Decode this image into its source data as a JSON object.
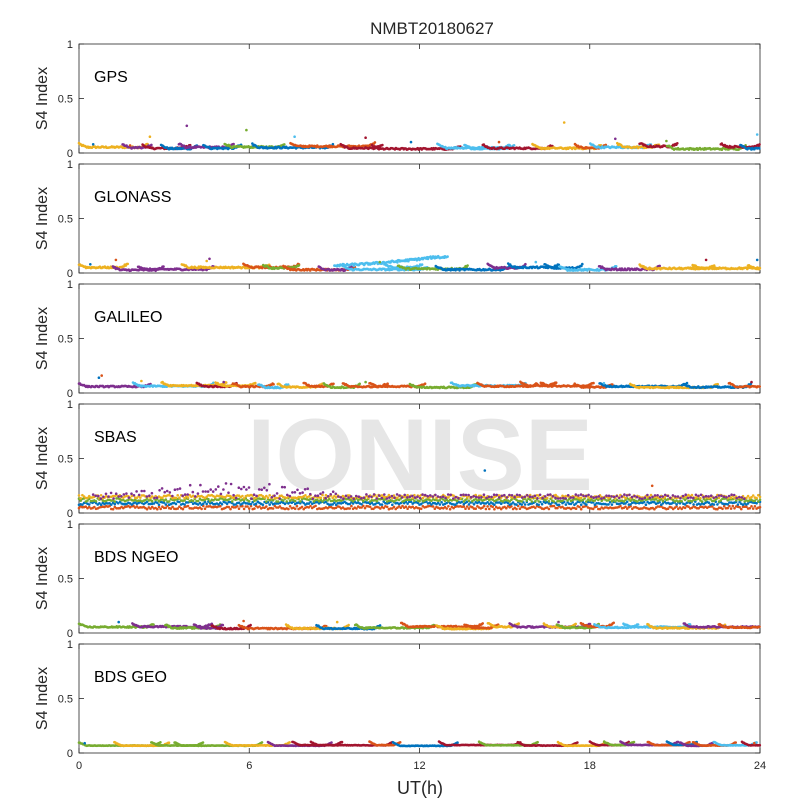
{
  "figure": {
    "title": "NMBT20180627",
    "watermark": "IONISE",
    "xlabel": "UT(h)",
    "ylabel": "S4 Index"
  },
  "style": {
    "series_colors": [
      "#0072BD",
      "#D95319",
      "#EDB120",
      "#7E2F8E",
      "#77AC30",
      "#4DBEEE",
      "#A2142F"
    ],
    "axis_color": "#262626",
    "watermark_color": "#E6E6E6"
  },
  "chart_data": [
    {
      "type": "scatter",
      "panel": "GPS",
      "xlim": [
        0,
        24
      ],
      "ylim": [
        0,
        1
      ],
      "xticks": [
        0,
        6,
        12,
        18,
        24
      ],
      "yticks": [
        0,
        0.5,
        1
      ],
      "baseline": 0.05,
      "spread": 0.025,
      "outliers": [
        [
          0.5,
          0.08
        ],
        [
          1.8,
          0.07
        ],
        [
          2.5,
          0.15
        ],
        [
          3.8,
          0.25
        ],
        [
          5.9,
          0.21
        ],
        [
          7.6,
          0.15
        ],
        [
          10.1,
          0.14
        ],
        [
          11.7,
          0.1
        ],
        [
          14.8,
          0.1
        ],
        [
          17.1,
          0.28
        ],
        [
          18.9,
          0.13
        ],
        [
          20.7,
          0.11
        ],
        [
          23.9,
          0.17
        ]
      ]
    },
    {
      "type": "scatter",
      "panel": "GLONASS",
      "xlim": [
        0,
        24
      ],
      "ylim": [
        0,
        1
      ],
      "xticks": [
        0,
        6,
        12,
        18,
        24
      ],
      "yticks": [
        0,
        0.5,
        1
      ],
      "baseline": 0.04,
      "spread": 0.025,
      "bump": {
        "x_start": 9,
        "x_end": 13,
        "y_max": 0.16
      },
      "outliers": [
        [
          0.4,
          0.08
        ],
        [
          1.3,
          0.12
        ],
        [
          4.5,
          0.11
        ],
        [
          4.6,
          0.13
        ],
        [
          10.6,
          0.1
        ],
        [
          16.1,
          0.1
        ],
        [
          22.1,
          0.12
        ],
        [
          23.9,
          0.12
        ]
      ]
    },
    {
      "type": "scatter",
      "panel": "GALILEO",
      "xlim": [
        0,
        24
      ],
      "ylim": [
        0,
        1
      ],
      "xticks": [
        0,
        6,
        12,
        18,
        24
      ],
      "yticks": [
        0,
        0.5,
        1
      ],
      "baseline": 0.06,
      "spread": 0.02,
      "outliers": [
        [
          0.7,
          0.14
        ],
        [
          0.8,
          0.16
        ],
        [
          2.2,
          0.11
        ],
        [
          5.1,
          0.1
        ],
        [
          10.1,
          0.1
        ],
        [
          18.5,
          0.09
        ],
        [
          23.7,
          0.1
        ]
      ]
    },
    {
      "type": "scatter",
      "panel": "SBAS",
      "xlim": [
        0,
        24
      ],
      "ylim": [
        0,
        1
      ],
      "xticks": [
        0,
        6,
        12,
        18,
        24
      ],
      "yticks": [
        0,
        0.5,
        1
      ],
      "levels": [
        0.05,
        0.09,
        0.12,
        0.15
      ],
      "scatter_peak": {
        "x_center": 5.5,
        "y_max": 0.28
      },
      "outliers": [
        [
          14.3,
          0.39
        ],
        [
          20.2,
          0.25
        ]
      ]
    },
    {
      "type": "scatter",
      "panel": "BDS NGEO",
      "xlim": [
        0,
        24
      ],
      "ylim": [
        0,
        1
      ],
      "xticks": [
        0,
        6,
        12,
        18,
        24
      ],
      "yticks": [
        0,
        0.5,
        1
      ],
      "baseline": 0.05,
      "spread": 0.02,
      "outliers": [
        [
          1.4,
          0.1
        ],
        [
          5.8,
          0.11
        ],
        [
          9.1,
          0.1
        ],
        [
          16.9,
          0.1
        ]
      ]
    },
    {
      "type": "scatter",
      "panel": "BDS GEO",
      "xlim": [
        0,
        24
      ],
      "ylim": [
        0,
        1
      ],
      "xticks": [
        0,
        6,
        12,
        18,
        24
      ],
      "yticks": [
        0,
        0.5,
        1
      ],
      "baseline": 0.07,
      "spread": 0.008,
      "outliers": [
        [
          0.2,
          0.09
        ],
        [
          23.8,
          0.09
        ]
      ]
    }
  ]
}
